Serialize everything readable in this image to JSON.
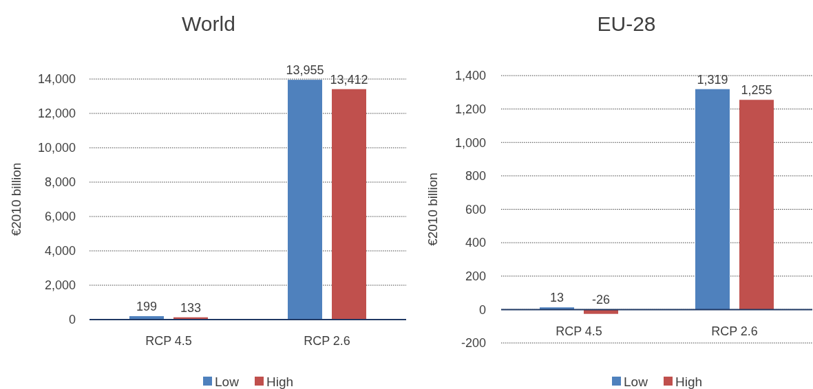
{
  "chart_data": [
    {
      "type": "bar",
      "title": "World",
      "ylabel": "€2010 billion",
      "categories": [
        "RCP 4.5",
        "RCP 2.6"
      ],
      "series": [
        {
          "name": "Low",
          "color": "#4f81bd",
          "values": [
            199,
            13955
          ],
          "value_labels": [
            "199",
            "13,955"
          ]
        },
        {
          "name": "High",
          "color": "#c0504d",
          "values": [
            133,
            13412
          ],
          "value_labels": [
            "133",
            "13,412"
          ]
        }
      ],
      "ylim": [
        0,
        14000
      ],
      "yticks": [
        0,
        {
          "value": 2000,
          "label": "2,000"
        },
        {
          "value": 4000,
          "label": "4,000"
        },
        {
          "value": 6000,
          "label": "6,000"
        },
        {
          "value": 8000,
          "label": "8,000"
        },
        {
          "value": 10000,
          "label": "10,000"
        },
        {
          "value": 12000,
          "label": "12,000"
        },
        {
          "value": 14000,
          "label": "14,000"
        }
      ],
      "grid": "y",
      "legend": "bottom"
    },
    {
      "type": "bar",
      "title": "EU-28",
      "ylabel": "€2010 billion",
      "categories": [
        "RCP 4.5",
        "RCP 2.6"
      ],
      "series": [
        {
          "name": "Low",
          "color": "#4f81bd",
          "values": [
            13,
            1319
          ],
          "value_labels": [
            "13",
            "1,319"
          ]
        },
        {
          "name": "High",
          "color": "#c0504d",
          "values": [
            -26,
            1255
          ],
          "value_labels": [
            "-26",
            "1,255"
          ]
        }
      ],
      "ylim": [
        -200,
        1400
      ],
      "yticks": [
        -200,
        0,
        200,
        400,
        600,
        800,
        {
          "value": 1000,
          "label": "1,000"
        },
        {
          "value": 1200,
          "label": "1,200"
        },
        {
          "value": 1400,
          "label": "1,400"
        }
      ],
      "ref_lines": [
        {
          "axis": "y",
          "value": 0,
          "color": "#1f3864"
        }
      ],
      "grid": "y",
      "legend": "bottom"
    }
  ]
}
